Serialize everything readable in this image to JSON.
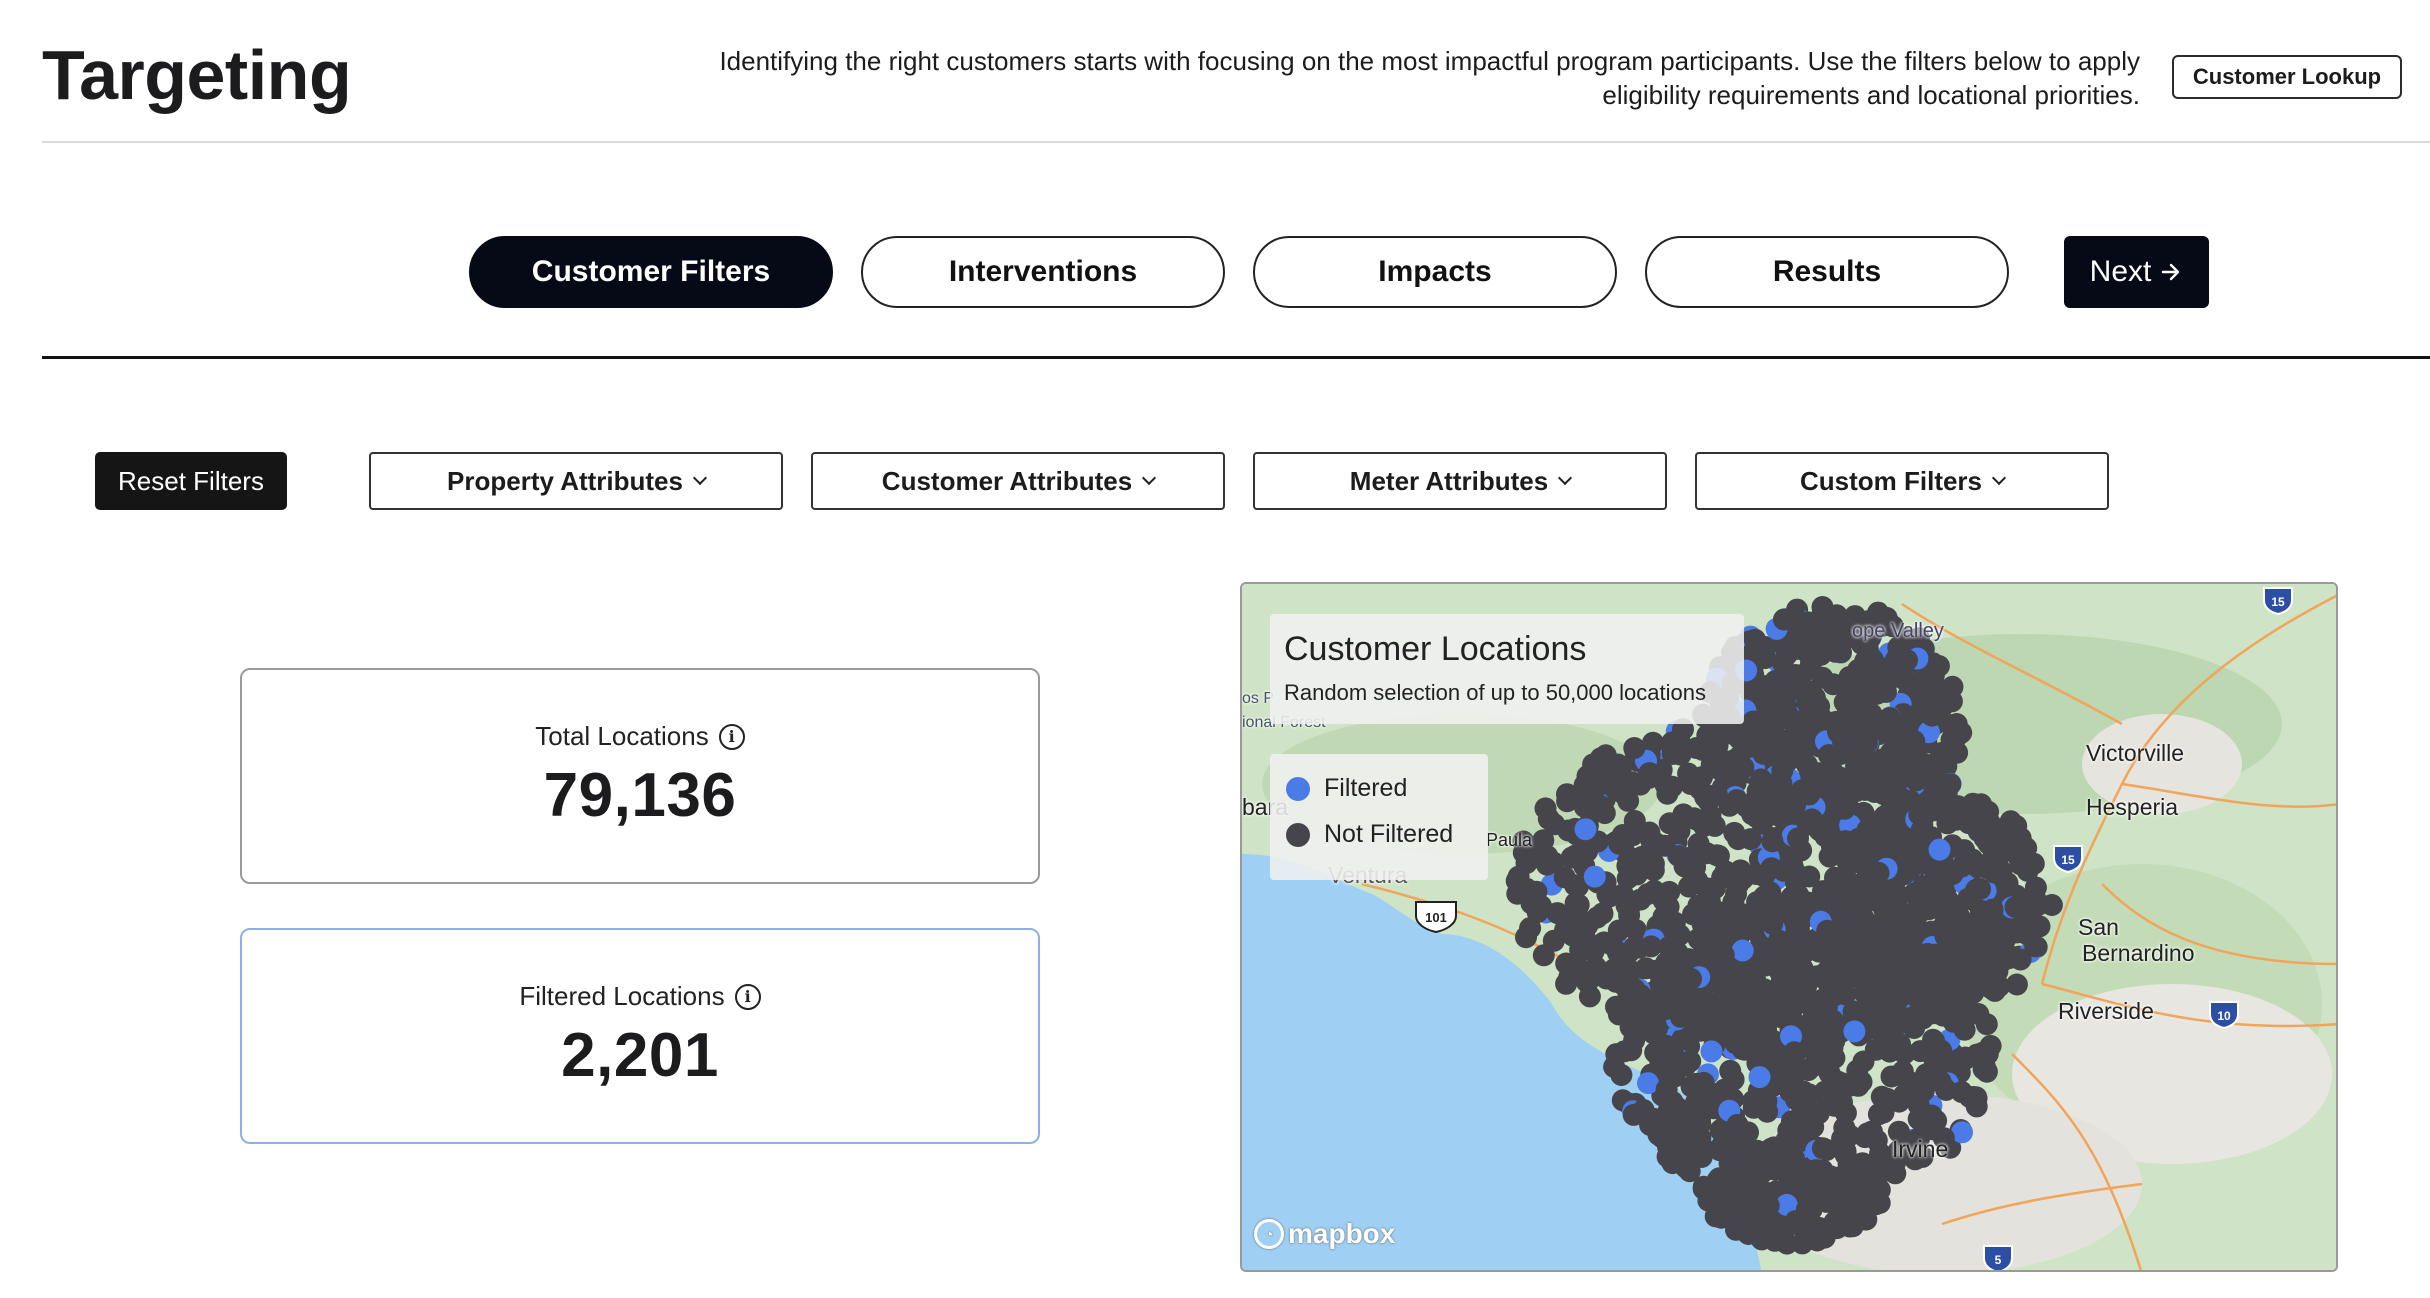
{
  "header": {
    "title": "Targeting",
    "description": "Identifying the right customers starts with focusing on the most impactful program participants. Use the filters below to apply eligibility requirements and locational priorities.",
    "customer_lookup_label": "Customer Lookup"
  },
  "steps": {
    "tabs": [
      {
        "label": "Customer Filters",
        "active": true
      },
      {
        "label": "Interventions",
        "active": false
      },
      {
        "label": "Impacts",
        "active": false
      },
      {
        "label": "Results",
        "active": false
      }
    ],
    "next_label": "Next",
    "next_icon": "arrow-right-icon"
  },
  "filters": {
    "reset_label": "Reset Filters",
    "dropdowns": [
      {
        "label": "Property Attributes"
      },
      {
        "label": "Customer Attributes"
      },
      {
        "label": "Meter Attributes"
      },
      {
        "label": "Custom Filters"
      }
    ]
  },
  "stats": {
    "total": {
      "label": "Total Locations",
      "value": "79,136"
    },
    "filtered": {
      "label": "Filtered Locations",
      "value": "2,201"
    }
  },
  "map": {
    "title": "Customer Locations",
    "subtitle": "Random selection of up to 50,000 locations",
    "legend": [
      {
        "label": "Filtered",
        "color": "#4a7be6"
      },
      {
        "label": "Not Filtered",
        "color": "#45454b"
      }
    ],
    "places": [
      "Victorville",
      "Hesperia",
      "San",
      "Bernardino",
      "Riverside",
      "Irvine",
      "Ventura",
      "Paula",
      "bara",
      "ope Valley",
      "os P",
      "ional Forest"
    ],
    "highway_shields": [
      "15",
      "15",
      "10",
      "101",
      "5"
    ],
    "attribution": "mapbox",
    "colors": {
      "water": "#9fd0f3",
      "land": "#cfe3c6",
      "urban": "#e8e6e1",
      "road": "#f0a55a"
    }
  }
}
